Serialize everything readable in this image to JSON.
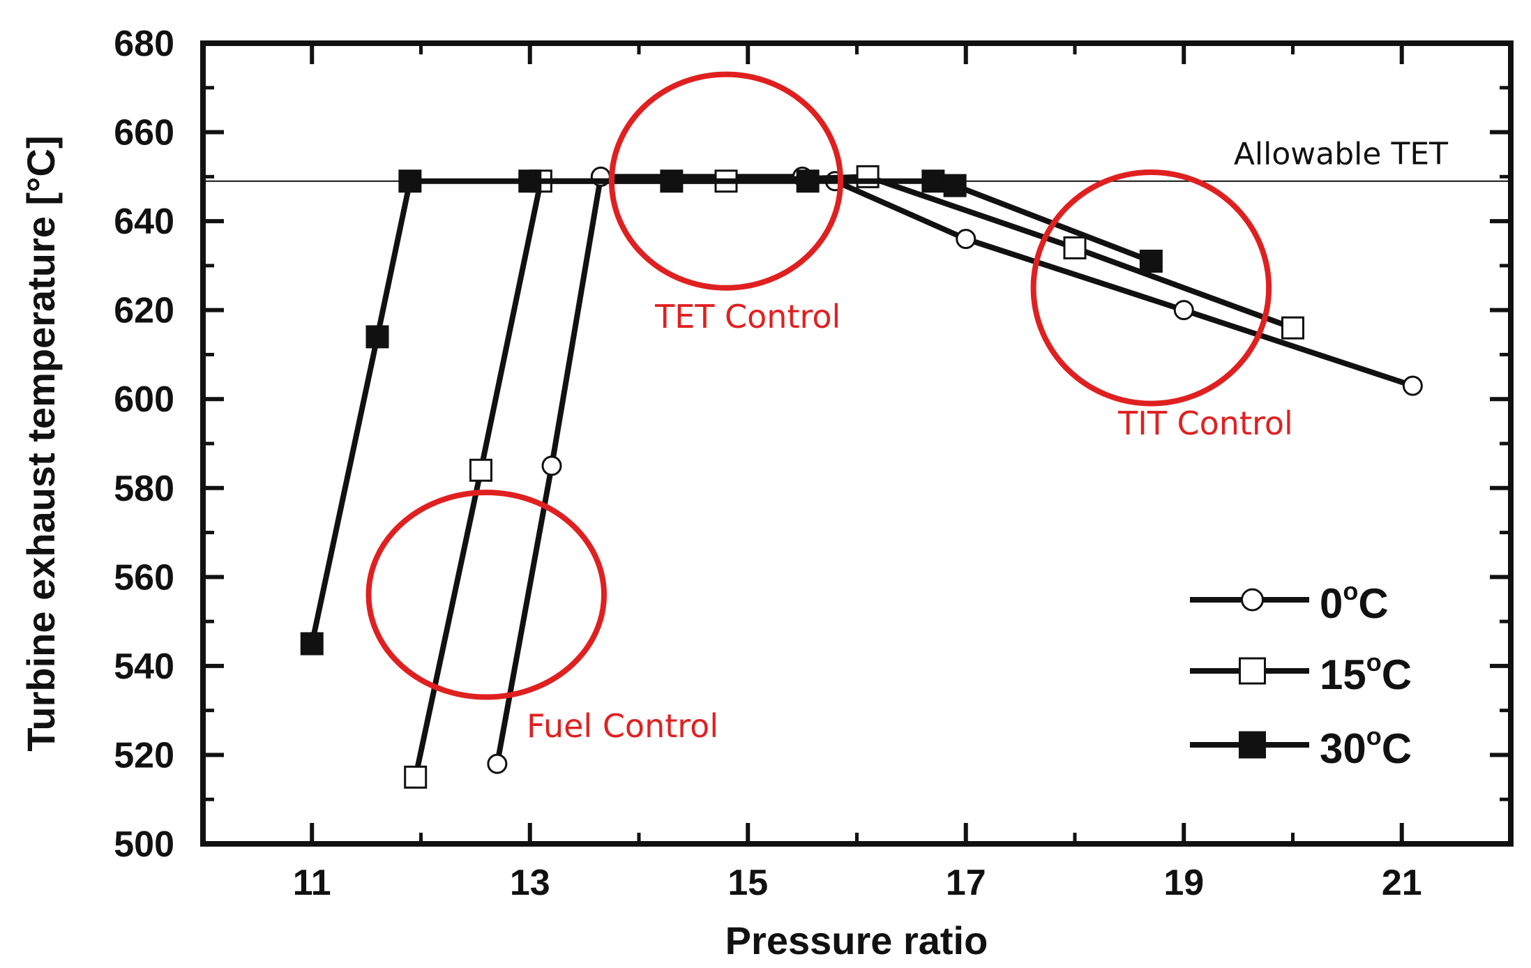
{
  "chart_data": {
    "type": "line",
    "xlabel": "Pressure ratio",
    "ylabel": "Turbine exhaust temperature [°C]",
    "xlim": [
      10,
      22
    ],
    "ylim": [
      500,
      680
    ],
    "xticks": [
      "11",
      "13",
      "15",
      "17",
      "19",
      "21"
    ],
    "yticks": [
      "500",
      "520",
      "540",
      "560",
      "580",
      "600",
      "620",
      "640",
      "660",
      "680"
    ],
    "reference_line": {
      "label": "Allowable TET",
      "y": 649
    },
    "series": [
      {
        "name": "0°C",
        "legend_base": "0",
        "legend_sup": "o",
        "legend_unit": "C",
        "marker": "circle",
        "points": [
          [
            12.7,
            518
          ],
          [
            13.2,
            585
          ],
          [
            13.65,
            650
          ],
          [
            15.5,
            650
          ],
          [
            15.8,
            649
          ],
          [
            17.0,
            636
          ],
          [
            19.0,
            620
          ],
          [
            21.1,
            603
          ]
        ]
      },
      {
        "name": "15°C",
        "legend_base": "15",
        "legend_sup": "o",
        "legend_unit": "C",
        "marker": "square-open",
        "points": [
          [
            11.95,
            515
          ],
          [
            12.55,
            584
          ],
          [
            13.1,
            649
          ],
          [
            14.8,
            649
          ],
          [
            16.1,
            650
          ],
          [
            18.0,
            634
          ],
          [
            20.0,
            616
          ]
        ]
      },
      {
        "name": "30°C",
        "legend_base": "30",
        "legend_sup": "o",
        "legend_unit": "C",
        "marker": "square-filled",
        "points": [
          [
            11.0,
            545
          ],
          [
            11.6,
            614
          ],
          [
            11.9,
            649
          ],
          [
            13.0,
            649
          ],
          [
            14.3,
            649
          ],
          [
            15.55,
            649
          ],
          [
            16.7,
            649
          ],
          [
            16.9,
            648
          ],
          [
            18.7,
            631
          ]
        ]
      }
    ],
    "annotations": [
      {
        "label": "TET Control",
        "x": 14.8,
        "y": 649,
        "rx": 1.05,
        "ry": 24,
        "text_x": 15.0,
        "text_y": 616
      },
      {
        "label": "TIT Control",
        "x": 18.7,
        "y": 625,
        "rx": 1.08,
        "ry": 26,
        "text_x": 19.2,
        "text_y": 592
      },
      {
        "label": "Fuel Control",
        "x": 12.6,
        "y": 556,
        "rx": 1.08,
        "ry": 23,
        "text_x": 13.85,
        "text_y": 524
      }
    ],
    "colors": {
      "axis": "#111111",
      "series": "#111111",
      "annotation": "#e02020"
    }
  }
}
